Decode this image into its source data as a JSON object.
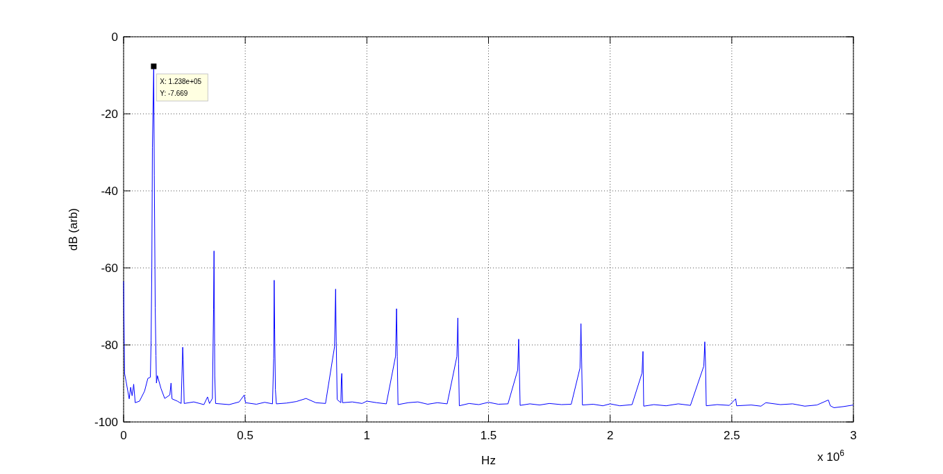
{
  "chart_data": {
    "type": "line",
    "xlabel": "Hz",
    "ylabel": "dB (arb)",
    "xlim": [
      0,
      3
    ],
    "ylim": [
      -100,
      0
    ],
    "xticks": [
      0,
      0.5,
      1,
      1.5,
      2,
      2.5,
      3
    ],
    "yticks": [
      -100,
      -80,
      -60,
      -40,
      -20,
      0
    ],
    "grid": true,
    "marker": "none",
    "line_style": "solid",
    "annotations": [
      {
        "text": "X: 1.238e+05\nY: -7.669",
        "x": 0.1238,
        "y": -7.669
      },
      "x 10$^{6}$"
    ],
    "series": [
      {
        "color": "#0000ff",
        "x": [
          0,
          0.004,
          0.01,
          0.023,
          0.029,
          0.035,
          0.0415,
          0.0477,
          0.0654,
          0.0862,
          0.0996,
          0.11,
          0.113,
          0.116,
          0.1184,
          0.1238,
          0.1262,
          0.13,
          0.133,
          0.135,
          0.139,
          0.1536,
          0.169,
          0.19,
          0.195,
          0.199,
          0.221,
          0.2366,
          0.243,
          0.245,
          0.249,
          0.2886,
          0.33,
          0.345,
          0.353,
          0.365,
          0.3697,
          0.3717,
          0.3748,
          0.378,
          0.434,
          0.475,
          0.496,
          0.501,
          0.546,
          0.58,
          0.612,
          0.617,
          0.619,
          0.621,
          0.624,
          0.628,
          0.67,
          0.71,
          0.75,
          0.79,
          0.83,
          0.867,
          0.8716,
          0.874,
          0.878,
          0.893,
          0.895,
          0.897,
          0.9,
          0.94,
          0.98,
          1,
          1.04,
          1.08,
          1.118,
          1.122,
          1.125,
          1.128,
          1.17,
          1.21,
          1.25,
          1.29,
          1.33,
          1.37,
          1.374,
          1.377,
          1.38,
          1.42,
          1.46,
          1.5,
          1.54,
          1.58,
          1.62,
          1.624,
          1.627,
          1.63,
          1.67,
          1.71,
          1.75,
          1.8,
          1.84,
          1.876,
          1.88,
          1.883,
          1.886,
          1.93,
          1.97,
          2,
          2.04,
          2.09,
          2.131,
          2.135,
          2.138,
          2.18,
          2.23,
          2.28,
          2.33,
          2.385,
          2.389,
          2.392,
          2.395,
          2.44,
          2.49,
          2.516,
          2.52,
          2.58,
          2.62,
          2.64,
          2.7,
          2.75,
          2.8,
          2.85,
          2.897,
          2.905,
          2.92,
          2.96,
          3
        ],
        "values": [
          -63.5,
          -87.4,
          -89.4,
          -94,
          -91,
          -93.2,
          -90.2,
          -95,
          -94.6,
          -92,
          -88.7,
          -88.4,
          -78.9,
          -59.9,
          -28.8,
          -7.7,
          -36,
          -70.4,
          -82.8,
          -89.9,
          -88,
          -91.3,
          -93.9,
          -93,
          -89.9,
          -94,
          -94.6,
          -95.2,
          -80.6,
          -83.9,
          -95.2,
          -94.8,
          -95.5,
          -93.5,
          -95.2,
          -93.9,
          -70.7,
          -55.6,
          -88.1,
          -95.2,
          -95.5,
          -94.8,
          -93,
          -95,
          -95.4,
          -94.9,
          -95.3,
          -83.5,
          -63.2,
          -76,
          -91.6,
          -95.3,
          -95.1,
          -94.7,
          -93.9,
          -95,
          -95.2,
          -80.5,
          -65.5,
          -79,
          -94.2,
          -95,
          -89,
          -87.4,
          -95,
          -94.8,
          -95.2,
          -94.6,
          -95,
          -95.3,
          -82.9,
          -70.6,
          -83,
          -95.5,
          -95,
          -94.8,
          -95.4,
          -95,
          -95.3,
          -83,
          -73,
          -85,
          -95.8,
          -95.2,
          -95.5,
          -94.9,
          -95.4,
          -95.3,
          -86.5,
          -78.5,
          -87,
          -95.7,
          -95.3,
          -95.6,
          -95.2,
          -95.5,
          -95.4,
          -86,
          -74.5,
          -84.5,
          -95.6,
          -95.4,
          -95.8,
          -95.3,
          -95.8,
          -95.5,
          -87.3,
          -81.7,
          -95.9,
          -95.5,
          -95.8,
          -95.3,
          -95.7,
          -85.5,
          -79.2,
          -84.5,
          -95.8,
          -95.5,
          -95.7,
          -94,
          -95.8,
          -95.6,
          -95.9,
          -95,
          -95.5,
          -95.3,
          -95.9,
          -95.6,
          -94.3,
          -95.8,
          -96.3,
          -96,
          -95.6
        ]
      }
    ]
  }
}
